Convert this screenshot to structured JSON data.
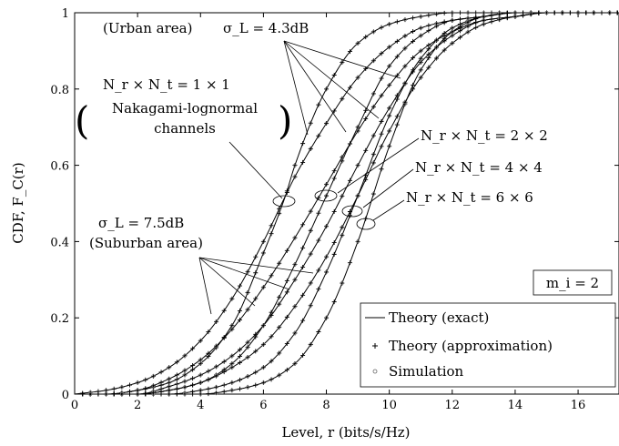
{
  "chart_data": {
    "type": "line",
    "xlabel": "Level, r (bits/s/Hz)",
    "ylabel": "CDF, F_C(r)",
    "xlim": [
      0,
      17.3
    ],
    "ylim": [
      0,
      1
    ],
    "xticks": [
      "0",
      "2",
      "4",
      "6",
      "8",
      "10",
      "12",
      "14",
      "16"
    ],
    "yticks": [
      "0",
      "0.2",
      "0.4",
      "0.6",
      "0.8",
      "1"
    ],
    "grid": false,
    "legend_position": "bottom-right",
    "legend": [
      {
        "label": "Theory (exact)",
        "marker": "line"
      },
      {
        "label": "Theory (approximation)",
        "marker": "plus"
      },
      {
        "label": "Simulation",
        "marker": "circle"
      }
    ],
    "param_box": "m_i = 2",
    "annotations": {
      "urban_prefix": "(Urban area)",
      "urban_sigma": "σ_L = 4.3dB",
      "nr1": "N_r × N_t = 1 × 1",
      "nak1": "Nakagami-lognormal",
      "nak2": "channels",
      "nr2": "N_r × N_t = 2 × 2",
      "nr4": "N_r × N_t = 4 × 4",
      "nr6": "N_r × N_t = 6 × 6",
      "suburban_sigma": "σ_L = 7.5dB",
      "suburban_area": "(Suburban area)"
    },
    "series": [
      {
        "config": "1x1",
        "sigma_L_dB": 4.3,
        "x": [
          0,
          1,
          2,
          3,
          4,
          5,
          6,
          6.7,
          7,
          8,
          9,
          10,
          11,
          12,
          13,
          14,
          15,
          16,
          17.3
        ],
        "y": [
          0,
          0.0,
          0.01,
          0.03,
          0.08,
          0.18,
          0.37,
          0.52,
          0.6,
          0.8,
          0.92,
          0.97,
          0.99,
          1.0,
          1.0,
          1.0,
          1.0,
          1.0,
          1.0
        ]
      },
      {
        "config": "2x2",
        "sigma_L_dB": 4.3,
        "x": [
          0,
          2,
          3,
          4,
          5,
          6,
          7,
          8,
          9,
          10,
          11,
          12,
          13,
          14,
          15,
          16,
          17.3
        ],
        "y": [
          0,
          0.0,
          0.01,
          0.03,
          0.08,
          0.18,
          0.34,
          0.52,
          0.7,
          0.86,
          0.94,
          0.98,
          0.99,
          1.0,
          1.0,
          1.0,
          1.0
        ]
      },
      {
        "config": "4x4",
        "sigma_L_dB": 4.3,
        "x": [
          0,
          3,
          4,
          5,
          6,
          7,
          8,
          9,
          10,
          11,
          12,
          13,
          14,
          15,
          16,
          17.3
        ],
        "y": [
          0,
          0.0,
          0.01,
          0.03,
          0.07,
          0.16,
          0.32,
          0.52,
          0.73,
          0.88,
          0.96,
          0.99,
          1.0,
          1.0,
          1.0,
          1.0
        ]
      },
      {
        "config": "6x6",
        "sigma_L_dB": 4.3,
        "x": [
          0,
          4,
          5,
          6,
          7,
          8,
          9,
          10,
          11,
          12,
          13,
          14,
          15,
          16,
          17.3
        ],
        "y": [
          0,
          0.0,
          0.01,
          0.03,
          0.08,
          0.2,
          0.4,
          0.65,
          0.85,
          0.95,
          0.99,
          1.0,
          1.0,
          1.0,
          1.0
        ]
      },
      {
        "config": "1x1",
        "sigma_L_dB": 7.5,
        "x": [
          0,
          1,
          2,
          3,
          4,
          5,
          6,
          6.7,
          7,
          8,
          9,
          10,
          11,
          12,
          13,
          14,
          15,
          16,
          17.3
        ],
        "y": [
          0,
          0.01,
          0.03,
          0.07,
          0.14,
          0.25,
          0.4,
          0.52,
          0.57,
          0.71,
          0.83,
          0.91,
          0.96,
          0.98,
          0.99,
          1.0,
          1.0,
          1.0,
          1.0
        ]
      },
      {
        "config": "2x2",
        "sigma_L_dB": 7.5,
        "x": [
          0,
          1,
          2,
          3,
          4,
          5,
          6,
          7,
          8,
          9,
          10,
          11,
          12,
          13,
          14,
          15,
          16,
          17.3
        ],
        "y": [
          0,
          0.0,
          0.01,
          0.04,
          0.09,
          0.17,
          0.28,
          0.41,
          0.55,
          0.69,
          0.81,
          0.9,
          0.95,
          0.98,
          0.99,
          1.0,
          1.0,
          1.0
        ]
      },
      {
        "config": "4x4",
        "sigma_L_dB": 7.5,
        "x": [
          0,
          2,
          3,
          4,
          5,
          6,
          7,
          8,
          9,
          10,
          11,
          12,
          13,
          14,
          15,
          16,
          17.3
        ],
        "y": [
          0,
          0.0,
          0.02,
          0.05,
          0.1,
          0.18,
          0.3,
          0.44,
          0.6,
          0.75,
          0.87,
          0.94,
          0.98,
          0.99,
          1.0,
          1.0,
          1.0
        ]
      },
      {
        "config": "6x6",
        "sigma_L_dB": 7.5,
        "x": [
          0,
          2,
          3,
          4,
          5,
          6,
          7,
          8,
          9,
          10,
          11,
          12,
          13,
          14,
          15,
          16,
          17.3
        ],
        "y": [
          0,
          0.0,
          0.01,
          0.03,
          0.07,
          0.13,
          0.23,
          0.36,
          0.52,
          0.69,
          0.83,
          0.92,
          0.97,
          0.99,
          1.0,
          1.0,
          1.0
        ]
      }
    ]
  }
}
